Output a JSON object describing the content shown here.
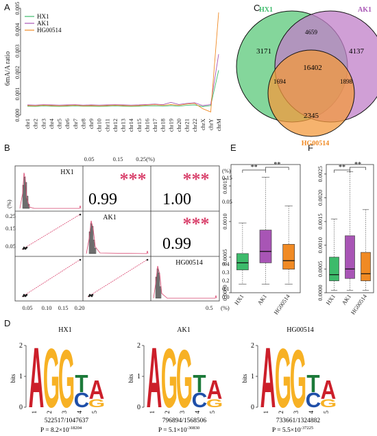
{
  "panel_labels": {
    "a": "A",
    "b": "B",
    "c": "C",
    "d": "D",
    "e": "E",
    "f": "F"
  },
  "colors": {
    "HX1": "#3dbb6b",
    "AK1": "#a855b5",
    "HG00514": "#f08a24",
    "sig": "#d9436d"
  },
  "chart_data": [
    {
      "panel": "A",
      "type": "line",
      "ylabel": "6mA/A ratio",
      "ylim": [
        0,
        0.005
      ],
      "yticks": [
        "0.000",
        "0.001",
        "0.002",
        "0.003",
        "0.004",
        "0.005"
      ],
      "legend": "top-left",
      "categories": [
        "chr1",
        "chr2",
        "chr3",
        "chr4",
        "chr5",
        "chr6",
        "chr7",
        "chr8",
        "chr9",
        "chr10",
        "chr11",
        "chr12",
        "chr13",
        "chr14",
        "chr15",
        "chr16",
        "chr17",
        "chr18",
        "chr19",
        "chr20",
        "chr21",
        "chr22",
        "chrX",
        "chrY",
        "chrM"
      ],
      "series": [
        {
          "name": "HX1",
          "values": [
            0.00042,
            0.00041,
            0.00043,
            0.00042,
            0.00041,
            0.00042,
            0.00043,
            0.00042,
            0.00042,
            0.00041,
            0.00042,
            0.00043,
            0.00042,
            0.00041,
            0.00042,
            0.00043,
            0.00044,
            0.00042,
            0.00045,
            0.00042,
            0.00046,
            0.00048,
            0.0004,
            0.00045,
            0.0021
          ]
        },
        {
          "name": "AK1",
          "values": [
            0.00048,
            0.00047,
            0.00049,
            0.00048,
            0.00047,
            0.00048,
            0.00049,
            0.00047,
            0.00048,
            0.00047,
            0.00048,
            0.00049,
            0.00048,
            0.00047,
            0.00048,
            0.0005,
            0.00052,
            0.00049,
            0.0006,
            0.0005,
            0.00055,
            0.00058,
            0.00045,
            0.0005,
            0.00285
          ]
        },
        {
          "name": "HG00514",
          "values": [
            0.00045,
            0.00044,
            0.00046,
            0.00045,
            0.00044,
            0.00045,
            0.00046,
            0.00044,
            0.00045,
            0.00044,
            0.00045,
            0.00046,
            0.00045,
            0.00044,
            0.00045,
            0.00047,
            0.00049,
            0.00046,
            0.0005,
            0.00046,
            0.00052,
            0.00055,
            0.0003,
            0.00015,
            0.0048
          ]
        }
      ]
    },
    {
      "panel": "C",
      "type": "venn",
      "sets": [
        "HX1",
        "AK1",
        "HG00514"
      ],
      "regions": {
        "HX1_only": 3171,
        "AK1_only": 4137,
        "HG00514_only": 2345,
        "HX1_AK1": 4659,
        "HX1_HG00514": 1694,
        "AK1_HG00514": 1898,
        "all": 16402
      }
    },
    {
      "panel": "B",
      "type": "scatter-matrix",
      "labels": [
        "HX1",
        "AK1",
        "HG00514"
      ],
      "correlations": [
        {
          "pair": "HX1-AK1",
          "r": "0.99",
          "sig": "***"
        },
        {
          "pair": "HX1-HG00514",
          "r": "1.00",
          "sig": "***"
        },
        {
          "pair": "AK1-HG00514",
          "r": "0.99",
          "sig": "***"
        }
      ],
      "top_ticks": [
        "0.05",
        "0.15",
        "0.25(%)"
      ],
      "bottom_ticks": [
        "0.05",
        "0.10",
        "0.15",
        "0.20"
      ],
      "right_ticks_top": [
        "0.15",
        "0.05",
        "(%)"
      ],
      "right_ticks_bottom": [
        "0.4",
        "0.3",
        "0.2",
        "0.1",
        "0.0",
        "0.5",
        "(%)"
      ],
      "left_ticks": [
        "(%)",
        "0.25",
        "0.15",
        "0.05"
      ]
    },
    {
      "panel": "E",
      "type": "box",
      "categories": [
        "HX1",
        "AK1",
        "HG00514"
      ],
      "ylim": [
        0,
        0.0018
      ],
      "yticks": [
        "0.0000",
        "0.0005",
        "0.0010",
        "0.0015"
      ],
      "boxes": [
        {
          "min": 0.00012,
          "q1": 0.00032,
          "median": 0.00042,
          "q3": 0.00055,
          "max": 0.00098
        },
        {
          "min": 0.00012,
          "q1": 0.00042,
          "median": 0.00058,
          "q3": 0.00088,
          "max": 0.00162
        },
        {
          "min": 0.00012,
          "q1": 0.00033,
          "median": 0.00045,
          "q3": 0.00068,
          "max": 0.00122
        }
      ],
      "significance": [
        {
          "from": 0,
          "to": 1,
          "label": "**"
        },
        {
          "from": 1,
          "to": 2,
          "label": "**"
        }
      ]
    },
    {
      "panel": "F",
      "type": "box",
      "categories": [
        "HX1",
        "AK1",
        "HG00514"
      ],
      "ylim": [
        0,
        0.0027
      ],
      "yticks": [
        "0.0000",
        "0.0005",
        "0.0010",
        "0.0015",
        "0.0020",
        "0.0025"
      ],
      "boxes": [
        {
          "min": 5e-05,
          "q1": 0.00025,
          "median": 0.00038,
          "q3": 0.00075,
          "max": 0.00155
        },
        {
          "min": 5e-05,
          "q1": 0.0003,
          "median": 0.0005,
          "q3": 0.0012,
          "max": 0.00255
        },
        {
          "min": 5e-05,
          "q1": 0.00025,
          "median": 0.0004,
          "q3": 0.00085,
          "max": 0.00175
        }
      ],
      "significance": [
        {
          "from": 0,
          "to": 1,
          "label": "**"
        },
        {
          "from": 1,
          "to": 2,
          "label": "**"
        }
      ]
    },
    {
      "panel": "D",
      "type": "sequence-logo",
      "ylabel": "bits",
      "yticks": [
        "0",
        "1",
        "2"
      ],
      "positions": [
        "1",
        "2",
        "3",
        "4",
        "5"
      ],
      "logos": [
        {
          "title": "HX1",
          "count": "522517/1047637",
          "pvalue": "P = 8.2×10",
          "exponent": "-18204"
        },
        {
          "title": "AK1",
          "count": "796894/1568506",
          "pvalue": "P = 5.1×10",
          "exponent": "-30830"
        },
        {
          "title": "HG00514",
          "count": "733661/1324882",
          "pvalue": "P = 5.5×10",
          "exponent": "-37225"
        }
      ]
    }
  ]
}
